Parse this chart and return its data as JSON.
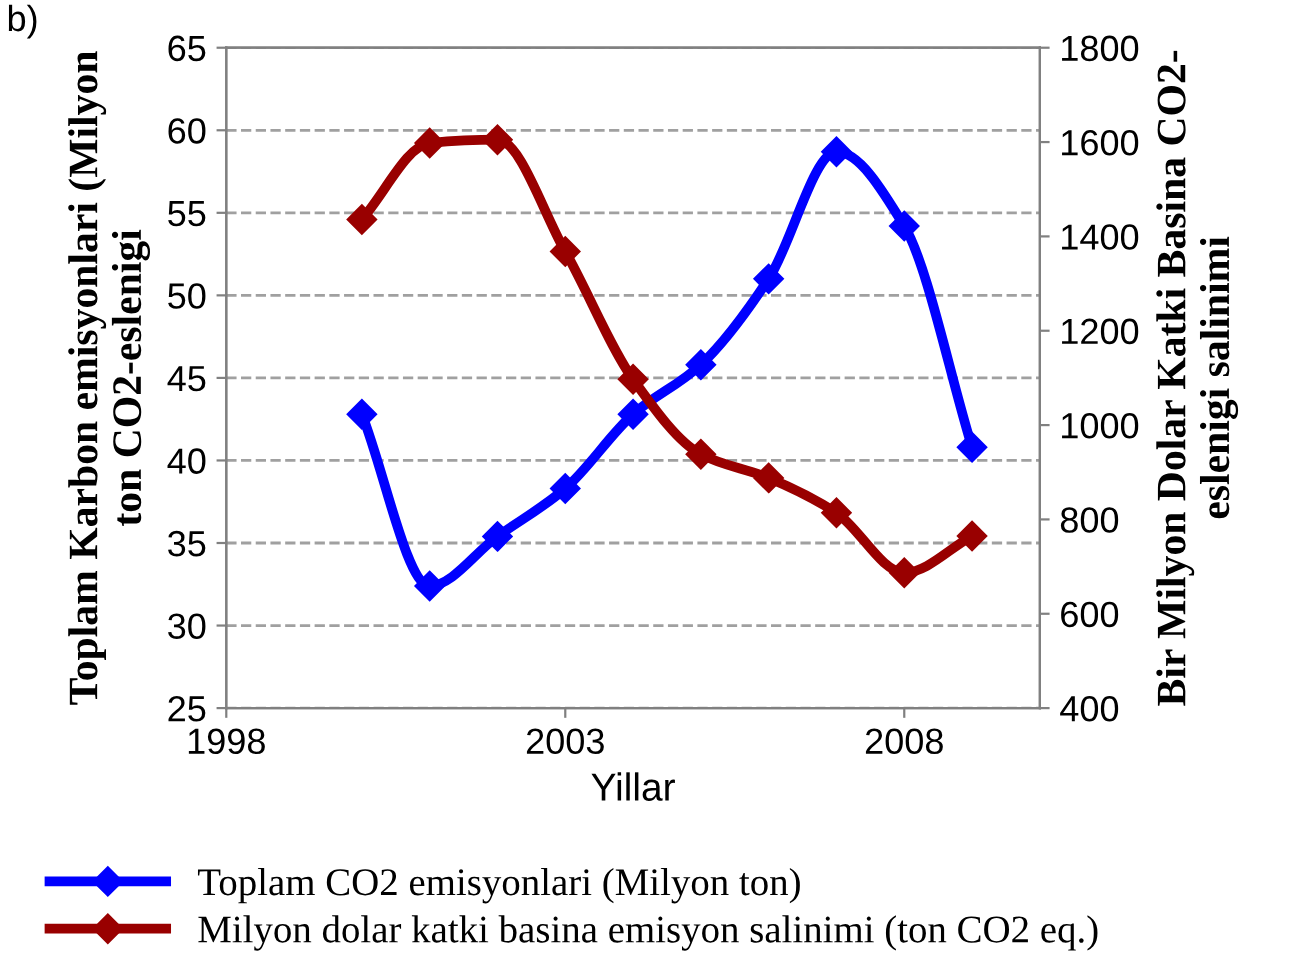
{
  "chart_data": {
    "type": "line",
    "xlabel": "Yillar",
    "ylabel": "Toplam Karbon emisyonlari (Milyon\nton CO2-eslenigi",
    "y2label": "Bir Milyon Dolar Katki Basina CO2-\neslenigi salinimi",
    "annotations": [
      "b)"
    ],
    "x": [
      2000,
      2001,
      2002,
      2003,
      2004,
      2005,
      2006,
      2007,
      2008,
      2009
    ],
    "series": [
      {
        "name": "Toplam CO2 emisyonlari (Milyon ton)",
        "color": "#0000ff",
        "values": [
          42.8,
          32.4,
          35.4,
          38.3,
          42.8,
          45.8,
          51.0,
          58.7,
          54.2,
          40.8
        ]
      },
      {
        "name": "Milyon dolar katki basina emisyon salinimi (ton CO2 eq.)",
        "color": "#990000",
        "axis": "y2",
        "values": [
          1436,
          1598,
          1605,
          1368,
          1097,
          938,
          888,
          814,
          687,
          765
        ]
      }
    ],
    "xlim": [
      1998,
      2010
    ],
    "xticks": [
      1998,
      2003,
      2008
    ],
    "ylim": [
      25,
      65
    ],
    "yticks": [
      25,
      30,
      35,
      40,
      45,
      50,
      55,
      60,
      65
    ],
    "y2lim": [
      400,
      1800
    ],
    "y2ticks": [
      400,
      600,
      800,
      1000,
      1200,
      1400,
      1600,
      1800
    ],
    "grid": "y",
    "legend": "bottom",
    "marker": "diamond",
    "line_style": "solid"
  }
}
